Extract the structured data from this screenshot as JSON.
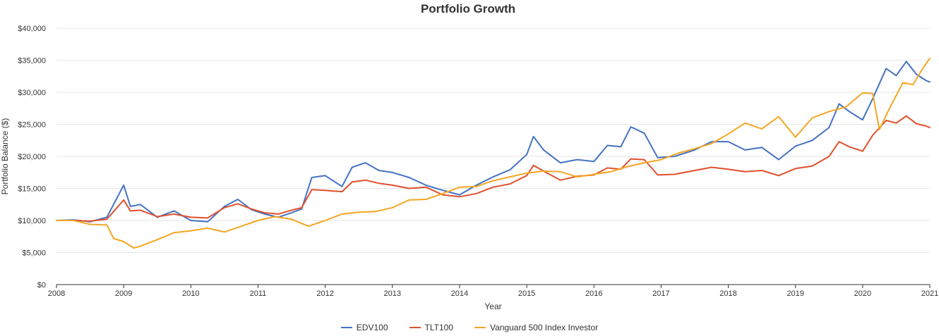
{
  "chart_data": {
    "type": "line",
    "title": "Portfolio Growth",
    "xlabel": "Year",
    "ylabel": "Portfolio Balance ($)",
    "xlim": [
      2008,
      2021
    ],
    "ylim": [
      0,
      40000
    ],
    "x_ticks": [
      "2008",
      "2009",
      "2010",
      "2011",
      "2012",
      "2013",
      "2014",
      "2015",
      "2016",
      "2017",
      "2018",
      "2019",
      "2020",
      "2021"
    ],
    "y_ticks": [
      "$0",
      "$5,000",
      "$10,000",
      "$15,000",
      "$20,000",
      "$25,000",
      "$30,000",
      "$35,000",
      "$40,000"
    ],
    "grid": true,
    "legend_position": "bottom",
    "series": [
      {
        "name": "EDV100",
        "color": "#4472c4",
        "x": [
          2008,
          2008.25,
          2008.5,
          2008.75,
          2009.0,
          2009.1,
          2009.25,
          2009.5,
          2009.75,
          2010.0,
          2010.25,
          2010.5,
          2010.7,
          2010.9,
          2011.1,
          2011.3,
          2011.5,
          2011.65,
          2011.8,
          2012.0,
          2012.25,
          2012.4,
          2012.6,
          2012.8,
          2013.0,
          2013.25,
          2013.5,
          2013.75,
          2014.0,
          2014.25,
          2014.5,
          2014.75,
          2015.0,
          2015.1,
          2015.25,
          2015.5,
          2015.75,
          2016.0,
          2016.2,
          2016.4,
          2016.55,
          2016.75,
          2016.95,
          2017.2,
          2017.5,
          2017.75,
          2018.0,
          2018.25,
          2018.5,
          2018.75,
          2019.0,
          2019.25,
          2019.5,
          2019.65,
          2019.8,
          2020.0,
          2020.15,
          2020.35,
          2020.5,
          2020.65,
          2020.8,
          2020.95,
          2021.0
        ],
        "values": [
          10000,
          10100,
          9800,
          10500,
          15500,
          12200,
          12500,
          10500,
          11500,
          10000,
          9800,
          12200,
          13300,
          11700,
          11000,
          10500,
          11200,
          11800,
          16700,
          17000,
          15300,
          18300,
          19000,
          17800,
          17500,
          16700,
          15500,
          14700,
          14000,
          15500,
          16800,
          17900,
          20300,
          23100,
          21000,
          19000,
          19500,
          19200,
          21700,
          21500,
          24600,
          23600,
          19800,
          20000,
          21000,
          22300,
          22300,
          21000,
          21400,
          19500,
          21600,
          22500,
          24500,
          28200,
          27000,
          25700,
          29000,
          33700,
          32600,
          34800,
          32800,
          31800,
          31600
        ]
      },
      {
        "name": "TLT100",
        "color": "#e0502d",
        "x": [
          2008,
          2008.25,
          2008.5,
          2008.75,
          2009.0,
          2009.1,
          2009.25,
          2009.5,
          2009.75,
          2010.0,
          2010.25,
          2010.5,
          2010.7,
          2010.9,
          2011.1,
          2011.3,
          2011.5,
          2011.65,
          2011.8,
          2012.0,
          2012.25,
          2012.4,
          2012.6,
          2012.8,
          2013.0,
          2013.25,
          2013.5,
          2013.75,
          2014.0,
          2014.25,
          2014.5,
          2014.75,
          2015.0,
          2015.1,
          2015.25,
          2015.5,
          2015.75,
          2016.0,
          2016.2,
          2016.4,
          2016.55,
          2016.75,
          2016.95,
          2017.2,
          2017.5,
          2017.75,
          2018.0,
          2018.25,
          2018.5,
          2018.75,
          2019.0,
          2019.25,
          2019.5,
          2019.65,
          2019.8,
          2020.0,
          2020.15,
          2020.35,
          2020.5,
          2020.65,
          2020.8,
          2020.95,
          2021.0
        ],
        "values": [
          10000,
          10000,
          9900,
          10200,
          13200,
          11500,
          11600,
          10600,
          11000,
          10500,
          10400,
          12000,
          12600,
          11800,
          11200,
          11000,
          11600,
          12000,
          14800,
          14700,
          14500,
          16000,
          16300,
          15800,
          15500,
          15000,
          15200,
          14000,
          13700,
          14200,
          15200,
          15700,
          17000,
          18600,
          17700,
          16300,
          16900,
          17100,
          18200,
          18000,
          19600,
          19500,
          17100,
          17200,
          17800,
          18300,
          18000,
          17600,
          17800,
          17000,
          18100,
          18500,
          20000,
          22300,
          21500,
          20800,
          23300,
          25600,
          25200,
          26300,
          25100,
          24700,
          24500
        ]
      },
      {
        "name": "Vanguard 500 Index Investor",
        "color": "#f5a623",
        "x": [
          2008,
          2008.25,
          2008.5,
          2008.75,
          2008.85,
          2009.0,
          2009.15,
          2009.25,
          2009.5,
          2009.75,
          2010.0,
          2010.25,
          2010.5,
          2010.75,
          2011.0,
          2011.25,
          2011.5,
          2011.75,
          2012.0,
          2012.25,
          2012.5,
          2012.75,
          2013.0,
          2013.25,
          2013.5,
          2013.75,
          2014.0,
          2014.25,
          2014.5,
          2014.75,
          2015.0,
          2015.25,
          2015.5,
          2015.75,
          2016.0,
          2016.25,
          2016.5,
          2016.75,
          2017.0,
          2017.25,
          2017.5,
          2017.75,
          2018.0,
          2018.25,
          2018.5,
          2018.75,
          2019.0,
          2019.25,
          2019.5,
          2019.75,
          2020.0,
          2020.15,
          2020.25,
          2020.4,
          2020.6,
          2020.75,
          2020.9,
          2021.0
        ],
        "values": [
          10000,
          10000,
          9400,
          9300,
          7200,
          6700,
          5700,
          6000,
          7000,
          8100,
          8400,
          8800,
          8200,
          9100,
          10000,
          10600,
          10200,
          9100,
          10000,
          11000,
          11300,
          11400,
          12000,
          13200,
          13300,
          14200,
          15200,
          15300,
          16200,
          16800,
          17400,
          17700,
          17600,
          16800,
          17200,
          17600,
          18400,
          19000,
          19500,
          20500,
          21200,
          22000,
          23500,
          25200,
          24300,
          26200,
          23000,
          26000,
          27000,
          27700,
          29900,
          29800,
          24200,
          27500,
          31500,
          31200,
          33800,
          35300
        ]
      }
    ]
  }
}
